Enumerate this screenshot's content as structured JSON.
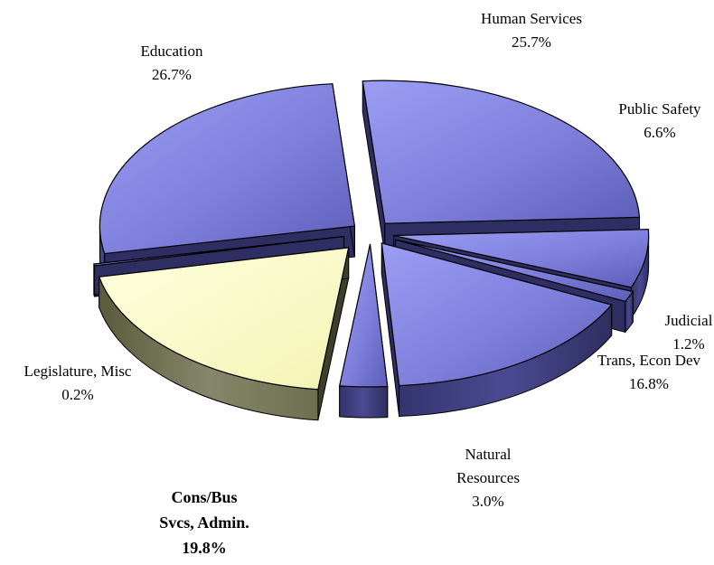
{
  "chart_data": {
    "type": "pie",
    "style": "3d-exploded",
    "slices": [
      {
        "label": "Human Services",
        "label_lines": [
          "Human Services"
        ],
        "value": 25.7,
        "value_label": "25.7%",
        "color": "#8f90ea",
        "highlight": false
      },
      {
        "label": "Public Safety",
        "label_lines": [
          "Public Safety"
        ],
        "value": 6.6,
        "value_label": "6.6%",
        "color": "#8f90ea",
        "highlight": false
      },
      {
        "label": "Judicial",
        "label_lines": [
          "Judicial"
        ],
        "value": 1.2,
        "value_label": "1.2%",
        "color": "#8f90ea",
        "highlight": false
      },
      {
        "label": "Trans, Econ Dev",
        "label_lines": [
          "Trans, Econ Dev"
        ],
        "value": 16.8,
        "value_label": "16.8%",
        "color": "#8f90ea",
        "highlight": false
      },
      {
        "label": "Natural Resources",
        "label_lines": [
          "Natural",
          "Resources"
        ],
        "value": 3.0,
        "value_label": "3.0%",
        "color": "#8f90ea",
        "highlight": false
      },
      {
        "label": "Cons/Bus Svcs, Admin.",
        "label_lines": [
          "Cons/Bus",
          "Svcs, Admin."
        ],
        "value": 19.8,
        "value_label": "19.8%",
        "color": "#fbfbc8",
        "highlight": true
      },
      {
        "label": "Legislature, Misc",
        "label_lines": [
          "Legislature, Misc"
        ],
        "value": 0.2,
        "value_label": "0.2%",
        "color": "#8f90ea",
        "highlight": false
      },
      {
        "label": "Education",
        "label_lines": [
          "Education"
        ],
        "value": 26.7,
        "value_label": "26.7%",
        "color": "#8f90ea",
        "highlight": false
      }
    ]
  }
}
